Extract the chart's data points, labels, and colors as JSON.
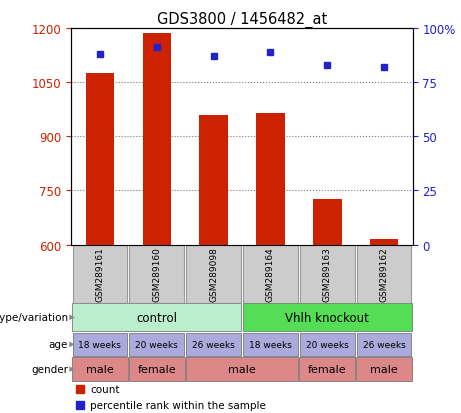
{
  "title": "GDS3800 / 1456482_at",
  "samples": [
    "GSM289161",
    "GSM289160",
    "GSM289098",
    "GSM289164",
    "GSM289163",
    "GSM289162"
  ],
  "bar_values": [
    1075,
    1185,
    960,
    965,
    725,
    615
  ],
  "dot_values": [
    88,
    91,
    87,
    89,
    83,
    82
  ],
  "ylim_left": [
    600,
    1200
  ],
  "ylim_right": [
    0,
    100
  ],
  "yticks_left": [
    600,
    750,
    900,
    1050,
    1200
  ],
  "yticks_right": [
    0,
    25,
    50,
    75,
    100
  ],
  "bar_color": "#cc2200",
  "dot_color": "#2222cc",
  "bar_width": 0.5,
  "genotype_groups": [
    {
      "label": "control",
      "start": 0,
      "end": 3,
      "color": "#bbeecc"
    },
    {
      "label": "Vhlh knockout",
      "start": 3,
      "end": 6,
      "color": "#55dd55"
    }
  ],
  "age": [
    "18 weeks",
    "20 weeks",
    "26 weeks",
    "18 weeks",
    "20 weeks",
    "26 weeks"
  ],
  "age_color": "#aaaadd",
  "gender_merged": [
    {
      "label": "male",
      "start": 0,
      "end": 1
    },
    {
      "label": "female",
      "start": 1,
      "end": 2
    },
    {
      "label": "male",
      "start": 2,
      "end": 4
    },
    {
      "label": "female",
      "start": 4,
      "end": 5
    },
    {
      "label": "male",
      "start": 5,
      "end": 6
    }
  ],
  "gender_color": "#dd8888",
  "sample_box_color": "#cccccc",
  "xlabel_color": "#cc2200",
  "ylabel_right_color": "#2222cc",
  "row_label_color": "#555555",
  "arrow_color": "#888888"
}
